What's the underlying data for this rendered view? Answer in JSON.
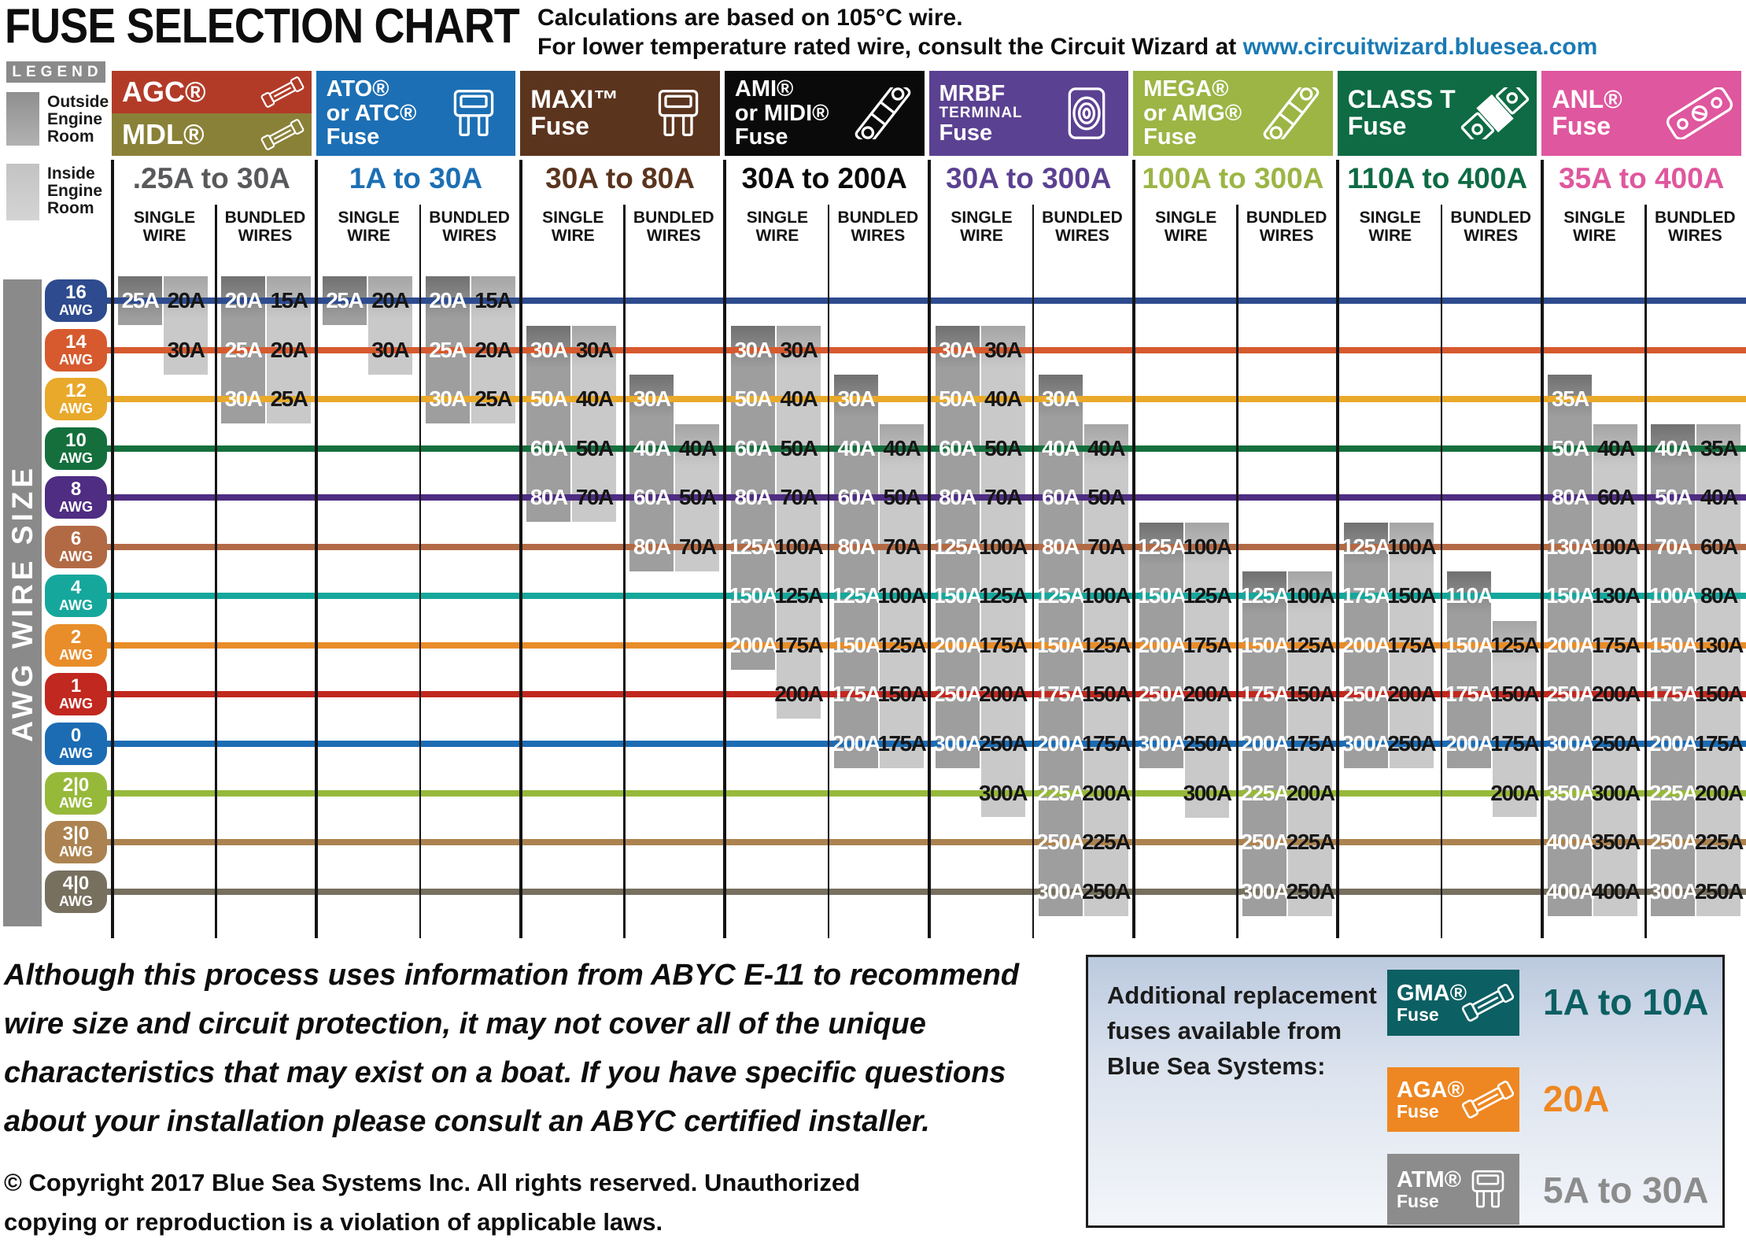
{
  "page": {
    "title": "FUSE SELECTION CHART",
    "subtitle_line1": "Calculations are based on 105°C wire.",
    "subtitle_line2_prefix": "For lower temperature rated wire, consult the Circuit Wizard at",
    "subtitle_link": "www.circuitwizard.bluesea.com",
    "link_color": "#1a7ab5"
  },
  "legend": {
    "title": "LEGEND",
    "items": [
      {
        "label": "Outside Engine Room",
        "shade": "outside",
        "color_top": "#8f8f8f",
        "color_bottom": "#b2b2b2"
      },
      {
        "label": "Inside Engine Room",
        "shade": "inside",
        "color_top": "#c3c3c3",
        "color_bottom": "#d4d4d4"
      }
    ]
  },
  "axis_label": "AWG WIRE SIZE",
  "sub_headers": {
    "single": [
      "SINGLE",
      "WIRE"
    ],
    "bundled": [
      "BUNDLED",
      "WIRES"
    ]
  },
  "bar_colors": {
    "outside": "#9e9e9e",
    "inside": "#c9c9c9"
  },
  "chart_data": {
    "type": "table",
    "title": "FUSE SELECTION CHART",
    "awg_rows": [
      {
        "awg": "16",
        "color": "#2d4b8e"
      },
      {
        "awg": "14",
        "color": "#d65a2e"
      },
      {
        "awg": "12",
        "color": "#e9a92a"
      },
      {
        "awg": "10",
        "color": "#156f3d"
      },
      {
        "awg": "8",
        "color": "#4e2d82"
      },
      {
        "awg": "6",
        "color": "#b26a45"
      },
      {
        "awg": "4",
        "color": "#16a79c"
      },
      {
        "awg": "2",
        "color": "#e88d2a"
      },
      {
        "awg": "1",
        "color": "#c1281f"
      },
      {
        "awg": "0",
        "color": "#1c6cb4"
      },
      {
        "awg": "2|0",
        "color": "#97b93a"
      },
      {
        "awg": "3|0",
        "color": "#ac8350"
      },
      {
        "awg": "4|0",
        "color": "#77705f"
      }
    ],
    "fuses": [
      {
        "id": "agc-mdl",
        "header_parts": [
          {
            "lines": [
              {
                "t": "AGC®"
              }
            ],
            "bg": "#b23b28",
            "icon": "glass-fuse"
          },
          {
            "lines": [
              {
                "t": "MDL®"
              }
            ],
            "bg": "#8a8138",
            "icon": "glass-fuse"
          }
        ],
        "range": ".25A to 30A",
        "range_color": "#58595b",
        "single": {
          "outside": {
            "16": "25A"
          },
          "inside": {
            "16": "20A",
            "14": "30A"
          }
        },
        "bundled": {
          "outside": {
            "16": "20A",
            "14": "25A",
            "12": "30A"
          },
          "inside": {
            "16": "15A",
            "14": "20A",
            "12": "25A"
          }
        }
      },
      {
        "id": "ato-atc",
        "header_parts": [
          {
            "lines": [
              {
                "t": "ATO®"
              },
              {
                "t": "or ATC®"
              },
              {
                "t": "Fuse"
              }
            ],
            "bg": "#1c6fb4",
            "icon": "blade-fuse"
          }
        ],
        "range": "1A to 30A",
        "range_color": "#1c6fb4",
        "single": {
          "outside": {
            "16": "25A"
          },
          "inside": {
            "16": "20A",
            "14": "30A"
          }
        },
        "bundled": {
          "outside": {
            "16": "20A",
            "14": "25A",
            "12": "30A"
          },
          "inside": {
            "16": "15A",
            "14": "20A",
            "12": "25A"
          }
        }
      },
      {
        "id": "maxi",
        "header_parts": [
          {
            "lines": [
              {
                "t": "MAXI™"
              },
              {
                "t": "Fuse"
              }
            ],
            "bg": "#5b341e",
            "icon": "blade-fuse"
          }
        ],
        "range": "30A to 80A",
        "range_color": "#5b341e",
        "single": {
          "outside": {
            "14": "30A",
            "12": "50A",
            "10": "60A",
            "8": "80A"
          },
          "inside": {
            "14": "30A",
            "12": "40A",
            "10": "50A",
            "8": "70A"
          }
        },
        "bundled": {
          "outside": {
            "12": "30A",
            "10": "40A",
            "8": "60A",
            "6": "80A"
          },
          "inside": {
            "10": "40A",
            "8": "50A",
            "6": "70A"
          }
        }
      },
      {
        "id": "ami-midi",
        "header_parts": [
          {
            "lines": [
              {
                "t": "AMI®"
              },
              {
                "t": "or MIDI®"
              },
              {
                "t": "Fuse"
              }
            ],
            "bg": "#0a0a0a",
            "icon": "bolt-fuse"
          }
        ],
        "range": "30A to 200A",
        "range_color": "#0a0a0a",
        "single": {
          "outside": {
            "14": "30A",
            "12": "50A",
            "10": "60A",
            "8": "80A",
            "6": "125A",
            "4": "150A",
            "2": "200A"
          },
          "inside": {
            "14": "30A",
            "12": "40A",
            "10": "50A",
            "8": "70A",
            "6": "100A",
            "4": "125A",
            "2": "175A",
            "1": "200A"
          }
        },
        "bundled": {
          "outside": {
            "12": "30A",
            "10": "40A",
            "8": "60A",
            "6": "80A",
            "4": "125A",
            "2": "150A",
            "1": "175A",
            "0": "200A"
          },
          "inside": {
            "10": "40A",
            "8": "50A",
            "6": "70A",
            "4": "100A",
            "2": "125A",
            "1": "150A",
            "0": "175A"
          }
        }
      },
      {
        "id": "mrbf",
        "header_parts": [
          {
            "lines": [
              {
                "t": "MRBF"
              },
              {
                "t": "TERMINAL",
                "small": true
              },
              {
                "t": "Fuse"
              }
            ],
            "bg": "#5b4191",
            "icon": "terminal-fuse"
          }
        ],
        "range": "30A to 300A",
        "range_color": "#5b4191",
        "single": {
          "outside": {
            "14": "30A",
            "12": "50A",
            "10": "60A",
            "8": "80A",
            "6": "125A",
            "4": "150A",
            "2": "200A",
            "1": "250A",
            "0": "300A"
          },
          "inside": {
            "14": "30A",
            "12": "40A",
            "10": "50A",
            "8": "70A",
            "6": "100A",
            "4": "125A",
            "2": "175A",
            "1": "200A",
            "0": "250A",
            "2|0": "300A"
          }
        },
        "bundled": {
          "outside": {
            "12": "30A",
            "10": "40A",
            "8": "60A",
            "6": "80A",
            "4": "125A",
            "2": "150A",
            "1": "175A",
            "0": "200A",
            "2|0": "225A",
            "3|0": "250A",
            "4|0": "300A"
          },
          "inside": {
            "10": "40A",
            "8": "50A",
            "6": "70A",
            "4": "100A",
            "2": "125A",
            "1": "150A",
            "0": "175A",
            "2|0": "200A",
            "3|0": "225A",
            "4|0": "250A"
          }
        }
      },
      {
        "id": "mega-amg",
        "header_parts": [
          {
            "lines": [
              {
                "t": "MEGA®"
              },
              {
                "t": "or AMG®"
              },
              {
                "t": "Fuse"
              }
            ],
            "bg": "#9cb545",
            "icon": "bolt-fuse"
          }
        ],
        "range": "100A to 300A",
        "range_color": "#9cb545",
        "single": {
          "outside": {
            "6": "125A",
            "4": "150A",
            "2": "200A",
            "1": "250A",
            "0": "300A"
          },
          "inside": {
            "6": "100A",
            "4": "125A",
            "2": "175A",
            "1": "200A",
            "0": "250A",
            "2|0": "300A"
          }
        },
        "bundled": {
          "outside": {
            "4": "125A",
            "2": "150A",
            "1": "175A",
            "0": "200A",
            "2|0": "225A",
            "3|0": "250A",
            "4|0": "300A"
          },
          "inside": {
            "4": "100A",
            "2": "125A",
            "1": "150A",
            "0": "175A",
            "2|0": "200A",
            "3|0": "225A",
            "4|0": "250A"
          }
        }
      },
      {
        "id": "class-t",
        "header_parts": [
          {
            "lines": [
              {
                "t": "CLASS T"
              },
              {
                "t": "Fuse"
              }
            ],
            "bg": "#0e6b44",
            "icon": "classt-fuse"
          }
        ],
        "range": "110A to 400A",
        "range_color": "#0e6b44",
        "single": {
          "outside": {
            "6": "125A",
            "4": "175A",
            "2": "200A",
            "1": "250A",
            "0": "300A"
          },
          "inside": {
            "6": "100A",
            "4": "150A",
            "2": "175A",
            "1": "200A",
            "0": "250A"
          }
        },
        "bundled": {
          "outside": {
            "4": "110A",
            "2": "150A",
            "1": "175A",
            "0": "200A"
          },
          "inside": {
            "2": "125A",
            "1": "150A",
            "0": "175A",
            "2|0": "200A"
          }
        }
      },
      {
        "id": "anl",
        "header_parts": [
          {
            "lines": [
              {
                "t": "ANL®"
              },
              {
                "t": "Fuse"
              }
            ],
            "bg": "#df579e",
            "icon": "anl-fuse"
          }
        ],
        "range": "35A to 400A",
        "range_color": "#df579e",
        "single": {
          "outside": {
            "12": "35A",
            "10": "50A",
            "8": "80A",
            "6": "130A",
            "4": "150A",
            "2": "200A",
            "1": "250A",
            "0": "300A",
            "2|0": "350A",
            "3|0": "400A",
            "4|0": "400A"
          },
          "inside": {
            "10": "40A",
            "8": "60A",
            "6": "100A",
            "4": "130A",
            "2": "175A",
            "1": "200A",
            "0": "250A",
            "2|0": "300A",
            "3|0": "350A",
            "4|0": "400A"
          }
        },
        "bundled": {
          "outside": {
            "10": "40A",
            "8": "50A",
            "6": "70A",
            "4": "100A",
            "2": "150A",
            "1": "175A",
            "0": "200A",
            "2|0": "225A",
            "3|0": "250A",
            "4|0": "300A"
          },
          "inside": {
            "10": "35A",
            "8": "40A",
            "6": "60A",
            "4": "80A",
            "2": "130A",
            "1": "150A",
            "0": "175A",
            "2|0": "200A",
            "3|0": "225A",
            "4|0": "250A"
          }
        }
      }
    ]
  },
  "disclaimer": "Although this process uses information from ABYC E-11 to recommend wire size and circuit protection, it may not cover all of the unique characteristics that may exist on a boat. If you have specific questions about your installation please consult an ABYC certified installer.",
  "copyright": "© Copyright 2017 Blue Sea Systems Inc. All rights reserved. Unauthorized copying or reproduction is a violation of applicable laws.",
  "replacement": {
    "intro": "Additional replacement fuses available from Blue Sea Systems:",
    "items": [
      {
        "name": "GMA®",
        "word": "Fuse",
        "range": "1A to 10A",
        "bg": "#0c5f62",
        "range_color": "#0c5f62",
        "icon": "glass-fuse"
      },
      {
        "name": "AGA®",
        "word": "Fuse",
        "range": "20A",
        "bg": "#ee8722",
        "range_color": "#ee8722",
        "icon": "glass-fuse"
      },
      {
        "name": "ATM®",
        "word": "Fuse",
        "range": "5A to 30A",
        "bg": "#8c8c8c",
        "range_color": "#8c8c8c",
        "icon": "blade-fuse"
      }
    ]
  }
}
